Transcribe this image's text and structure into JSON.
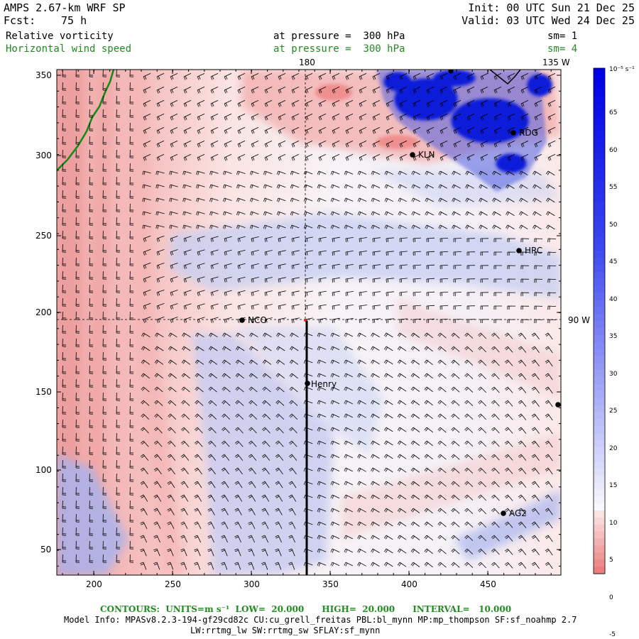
{
  "header": {
    "model": "AMPS 2.67-km WRF SP",
    "fcst_label": "Fcst:",
    "fcst_value": "75 h",
    "init": "Init: 00 UTC Sun 21 Dec 25",
    "valid": "Valid: 03 UTC Wed 24 Dec 25"
  },
  "fields": [
    {
      "name": "Relative vorticity",
      "level": "at pressure =  300 hPa",
      "sm": "sm= 1",
      "color": "#000000"
    },
    {
      "name": "Horizontal wind speed",
      "level": "at pressure =  300 hPa",
      "sm": "sm= 4",
      "color": "#228b22"
    }
  ],
  "map": {
    "x_ticks": [
      "200",
      "250",
      "300",
      "350",
      "400",
      "450"
    ],
    "y_ticks": [
      "350",
      "300",
      "250",
      "200",
      "150",
      "100",
      "50"
    ],
    "meridian_labels": [
      "180",
      "135 W"
    ],
    "parallel_label": "90 W",
    "stations": [
      "RDG",
      "KLN",
      "HRC",
      "NCO",
      "Henry",
      "AG2"
    ]
  },
  "colorbar": {
    "units": "10⁻⁵ s⁻¹",
    "labels": [
      "65",
      "60",
      "55",
      "50",
      "45",
      "40",
      "35",
      "30",
      "25",
      "20",
      "15",
      "10",
      "5",
      "0",
      "-5"
    ]
  },
  "footer": {
    "contours": "CONTOURS:  UNITS=m s⁻¹  LOW=  20.000      HIGH=  20.000      INTERVAL=   10.000",
    "model_info_1": "Model Info: MPASv8.2.3-194-gf29cd82c CU:cu_grell_freitas PBL:bl_mynn MP:mp_thompson SF:sf_noahmp 2.7",
    "model_info_2": "LW:rrtmg_lw SW:rrtmg_sw SFLAY:sf_mynn"
  }
}
